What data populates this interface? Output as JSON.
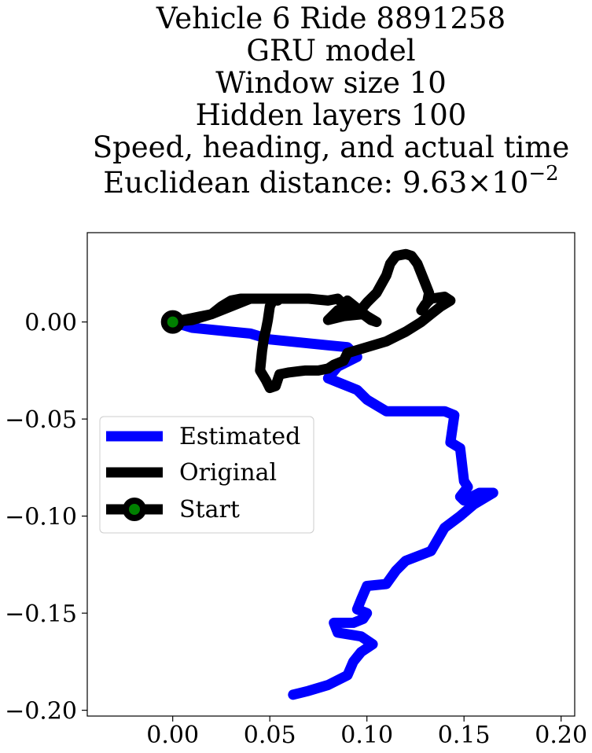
{
  "chart_data": {
    "type": "line",
    "title_lines": [
      "Vehicle 6 Ride 8891258",
      "GRU model",
      "Window size 10",
      "Hidden layers 100",
      "Speed, heading, and actual time"
    ],
    "title_metric_prefix": "Euclidean distance: 9.63",
    "title_metric_times": "×",
    "title_metric_base": "10",
    "title_metric_exp": "−2",
    "xlim": [
      -0.044,
      0.207
    ],
    "ylim": [
      -0.203,
      0.046
    ],
    "x_ticks": [
      0.0,
      0.05,
      0.1,
      0.15,
      0.2
    ],
    "x_tick_labels": [
      "0.00",
      "0.05",
      "0.10",
      "0.15",
      "0.20"
    ],
    "y_ticks": [
      0.0,
      -0.05,
      -0.1,
      -0.15,
      -0.2
    ],
    "y_tick_labels": [
      "0.00",
      "−0.05",
      "−0.10",
      "−0.15",
      "−0.20"
    ],
    "grid": false,
    "legend_position": "center-left",
    "legend": [
      "Estimated",
      "Original",
      "Start"
    ],
    "colors": {
      "estimated": "#0000ff",
      "original": "#000000",
      "start_marker_edge": "#000000",
      "start_marker_fill": "#008000"
    },
    "series": [
      {
        "name": "Estimated",
        "x": [
          0.0,
          0.01,
          0.02,
          0.03,
          0.04,
          0.05,
          0.06,
          0.07,
          0.08,
          0.09,
          0.095,
          0.085,
          0.08,
          0.085,
          0.095,
          0.1,
          0.105,
          0.11,
          0.12,
          0.13,
          0.14,
          0.145,
          0.143,
          0.148,
          0.15,
          0.152,
          0.148,
          0.15,
          0.158,
          0.165,
          0.155,
          0.148,
          0.14,
          0.133,
          0.12,
          0.115,
          0.11,
          0.1,
          0.097,
          0.095,
          0.1,
          0.098,
          0.093,
          0.083,
          0.085,
          0.097,
          0.103,
          0.097,
          0.093,
          0.09,
          0.08,
          0.07,
          0.062
        ],
        "y": [
          0.0,
          -0.003,
          -0.004,
          -0.005,
          -0.006,
          -0.009,
          -0.01,
          -0.011,
          -0.012,
          -0.013,
          -0.018,
          -0.023,
          -0.029,
          -0.031,
          -0.035,
          -0.04,
          -0.043,
          -0.046,
          -0.046,
          -0.046,
          -0.046,
          -0.048,
          -0.062,
          -0.065,
          -0.082,
          -0.085,
          -0.09,
          -0.092,
          -0.088,
          -0.088,
          -0.094,
          -0.1,
          -0.106,
          -0.118,
          -0.123,
          -0.128,
          -0.135,
          -0.136,
          -0.143,
          -0.148,
          -0.15,
          -0.153,
          -0.155,
          -0.155,
          -0.16,
          -0.162,
          -0.166,
          -0.17,
          -0.175,
          -0.182,
          -0.187,
          -0.19,
          -0.192
        ]
      },
      {
        "name": "Original",
        "x": [
          0.0,
          0.01,
          0.02,
          0.025,
          0.03,
          0.035,
          0.045,
          0.055,
          0.07,
          0.08,
          0.085,
          0.088,
          0.09,
          0.095,
          0.1,
          0.105,
          0.102,
          0.098,
          0.088,
          0.08,
          0.085,
          0.095,
          0.1,
          0.105,
          0.11,
          0.112,
          0.115,
          0.12,
          0.123,
          0.126,
          0.128,
          0.13,
          0.132,
          0.131,
          0.128,
          0.13,
          0.133,
          0.14,
          0.143,
          0.138,
          0.133,
          0.128,
          0.12,
          0.11,
          0.1,
          0.09,
          0.088,
          0.083,
          0.08,
          0.075,
          0.068,
          0.06,
          0.055,
          0.053,
          0.05,
          0.048,
          0.045,
          0.046,
          0.047,
          0.048,
          0.049,
          0.05,
          0.052,
          0.054,
          0.054,
          0.05,
          0.04,
          0.03,
          0.02,
          0.01,
          0.0
        ],
        "y": [
          0.0,
          0.001,
          0.004,
          0.008,
          0.011,
          0.012,
          0.012,
          0.012,
          0.012,
          0.011,
          0.012,
          0.009,
          0.011,
          0.007,
          0.003,
          0.0,
          0.001,
          0.004,
          0.003,
          0.001,
          0.006,
          0.004,
          0.01,
          0.015,
          0.024,
          0.03,
          0.034,
          0.035,
          0.034,
          0.03,
          0.025,
          0.02,
          0.015,
          0.01,
          0.006,
          0.009,
          0.012,
          0.013,
          0.011,
          0.008,
          0.004,
          0.0,
          -0.005,
          -0.01,
          -0.013,
          -0.016,
          -0.02,
          -0.022,
          -0.024,
          -0.025,
          -0.025,
          -0.026,
          -0.027,
          -0.033,
          -0.034,
          -0.03,
          -0.025,
          -0.015,
          -0.008,
          -0.004,
          0.001,
          0.008,
          0.012,
          0.011,
          0.012,
          0.012,
          0.012,
          0.008,
          0.004,
          0.002,
          0.0
        ]
      }
    ],
    "start_point": [
      0.0,
      0.0
    ]
  }
}
